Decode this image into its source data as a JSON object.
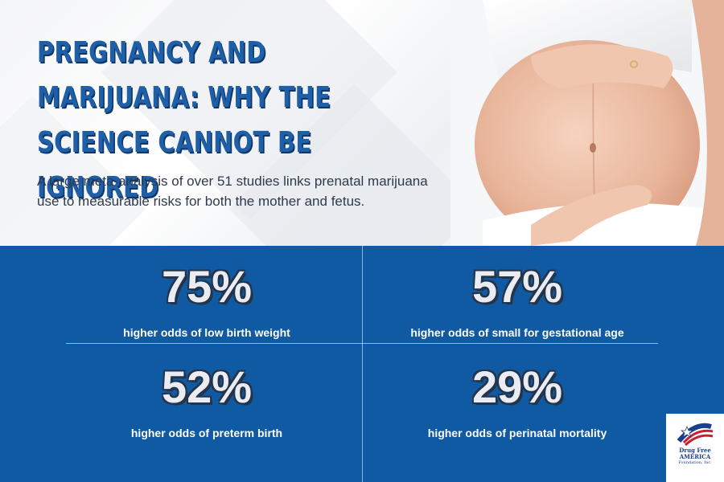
{
  "header": {
    "title": "PREGNANCY AND MARIJUANA: WHY THE SCIENCE CANNOT BE IGNORED",
    "subtitle": "A large meta-analysis of over 51 studies links prenatal marijuana use to measurable risks for both the mother and fetus."
  },
  "stats": [
    {
      "value": "75%",
      "label": "higher odds of low birth weight"
    },
    {
      "value": "57%",
      "label": "higher odds of small for gestational age"
    },
    {
      "value": "52%",
      "label": "higher odds of preterm birth"
    },
    {
      "value": "29%",
      "label": "higher odds of perinatal mortality"
    }
  ],
  "logo": {
    "line1": "Drug Free",
    "line2": "AMERICA",
    "line3": "Foundation, Inc."
  },
  "colors": {
    "title_blue": "#1e5fa8",
    "panel_blue": "#0f5aa3",
    "number_fill": "#e9edf3"
  },
  "icons": {
    "logo_mark": "american-flag-star-icon",
    "hero_image": "pregnant-belly-photo"
  }
}
